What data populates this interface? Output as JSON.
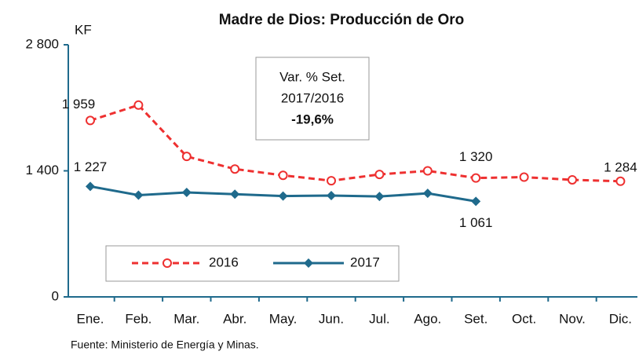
{
  "chart_data": {
    "type": "line",
    "title": "Madre de Dios: Producción de Oro",
    "y_label": "KF",
    "categories": [
      "Ene.",
      "Feb.",
      "Mar.",
      "Abr.",
      "May.",
      "Jun.",
      "Jul.",
      "Ago.",
      "Set.",
      "Oct.",
      "Nov.",
      "Dic."
    ],
    "series": [
      {
        "name": "2016",
        "color": "#ee3030",
        "values": [
          1959,
          2130,
          1560,
          1420,
          1350,
          1290,
          1360,
          1400,
          1320,
          1330,
          1300,
          1284
        ],
        "value_labels": [
          "1 959",
          null,
          null,
          null,
          null,
          null,
          null,
          null,
          "1 320",
          null,
          null,
          "1 284"
        ]
      },
      {
        "name": "2017",
        "color": "#1f6a8c",
        "values": [
          1227,
          1130,
          1160,
          1140,
          1120,
          1125,
          1115,
          1150,
          1061,
          null,
          null,
          null
        ],
        "value_labels": [
          "1 227",
          null,
          null,
          null,
          null,
          null,
          null,
          null,
          "1 061",
          null,
          null,
          null
        ]
      }
    ],
    "ylim": [
      0,
      2800
    ],
    "yticks": [
      0,
      {
        "value": 1400,
        "label": "1 400"
      },
      {
        "value": 2800,
        "label": "2 800"
      }
    ],
    "annotation": [
      "Var. % Set.",
      "2017/2016",
      "-19,6%"
    ],
    "source": "Fuente: Ministerio de Energía y Minas."
  }
}
